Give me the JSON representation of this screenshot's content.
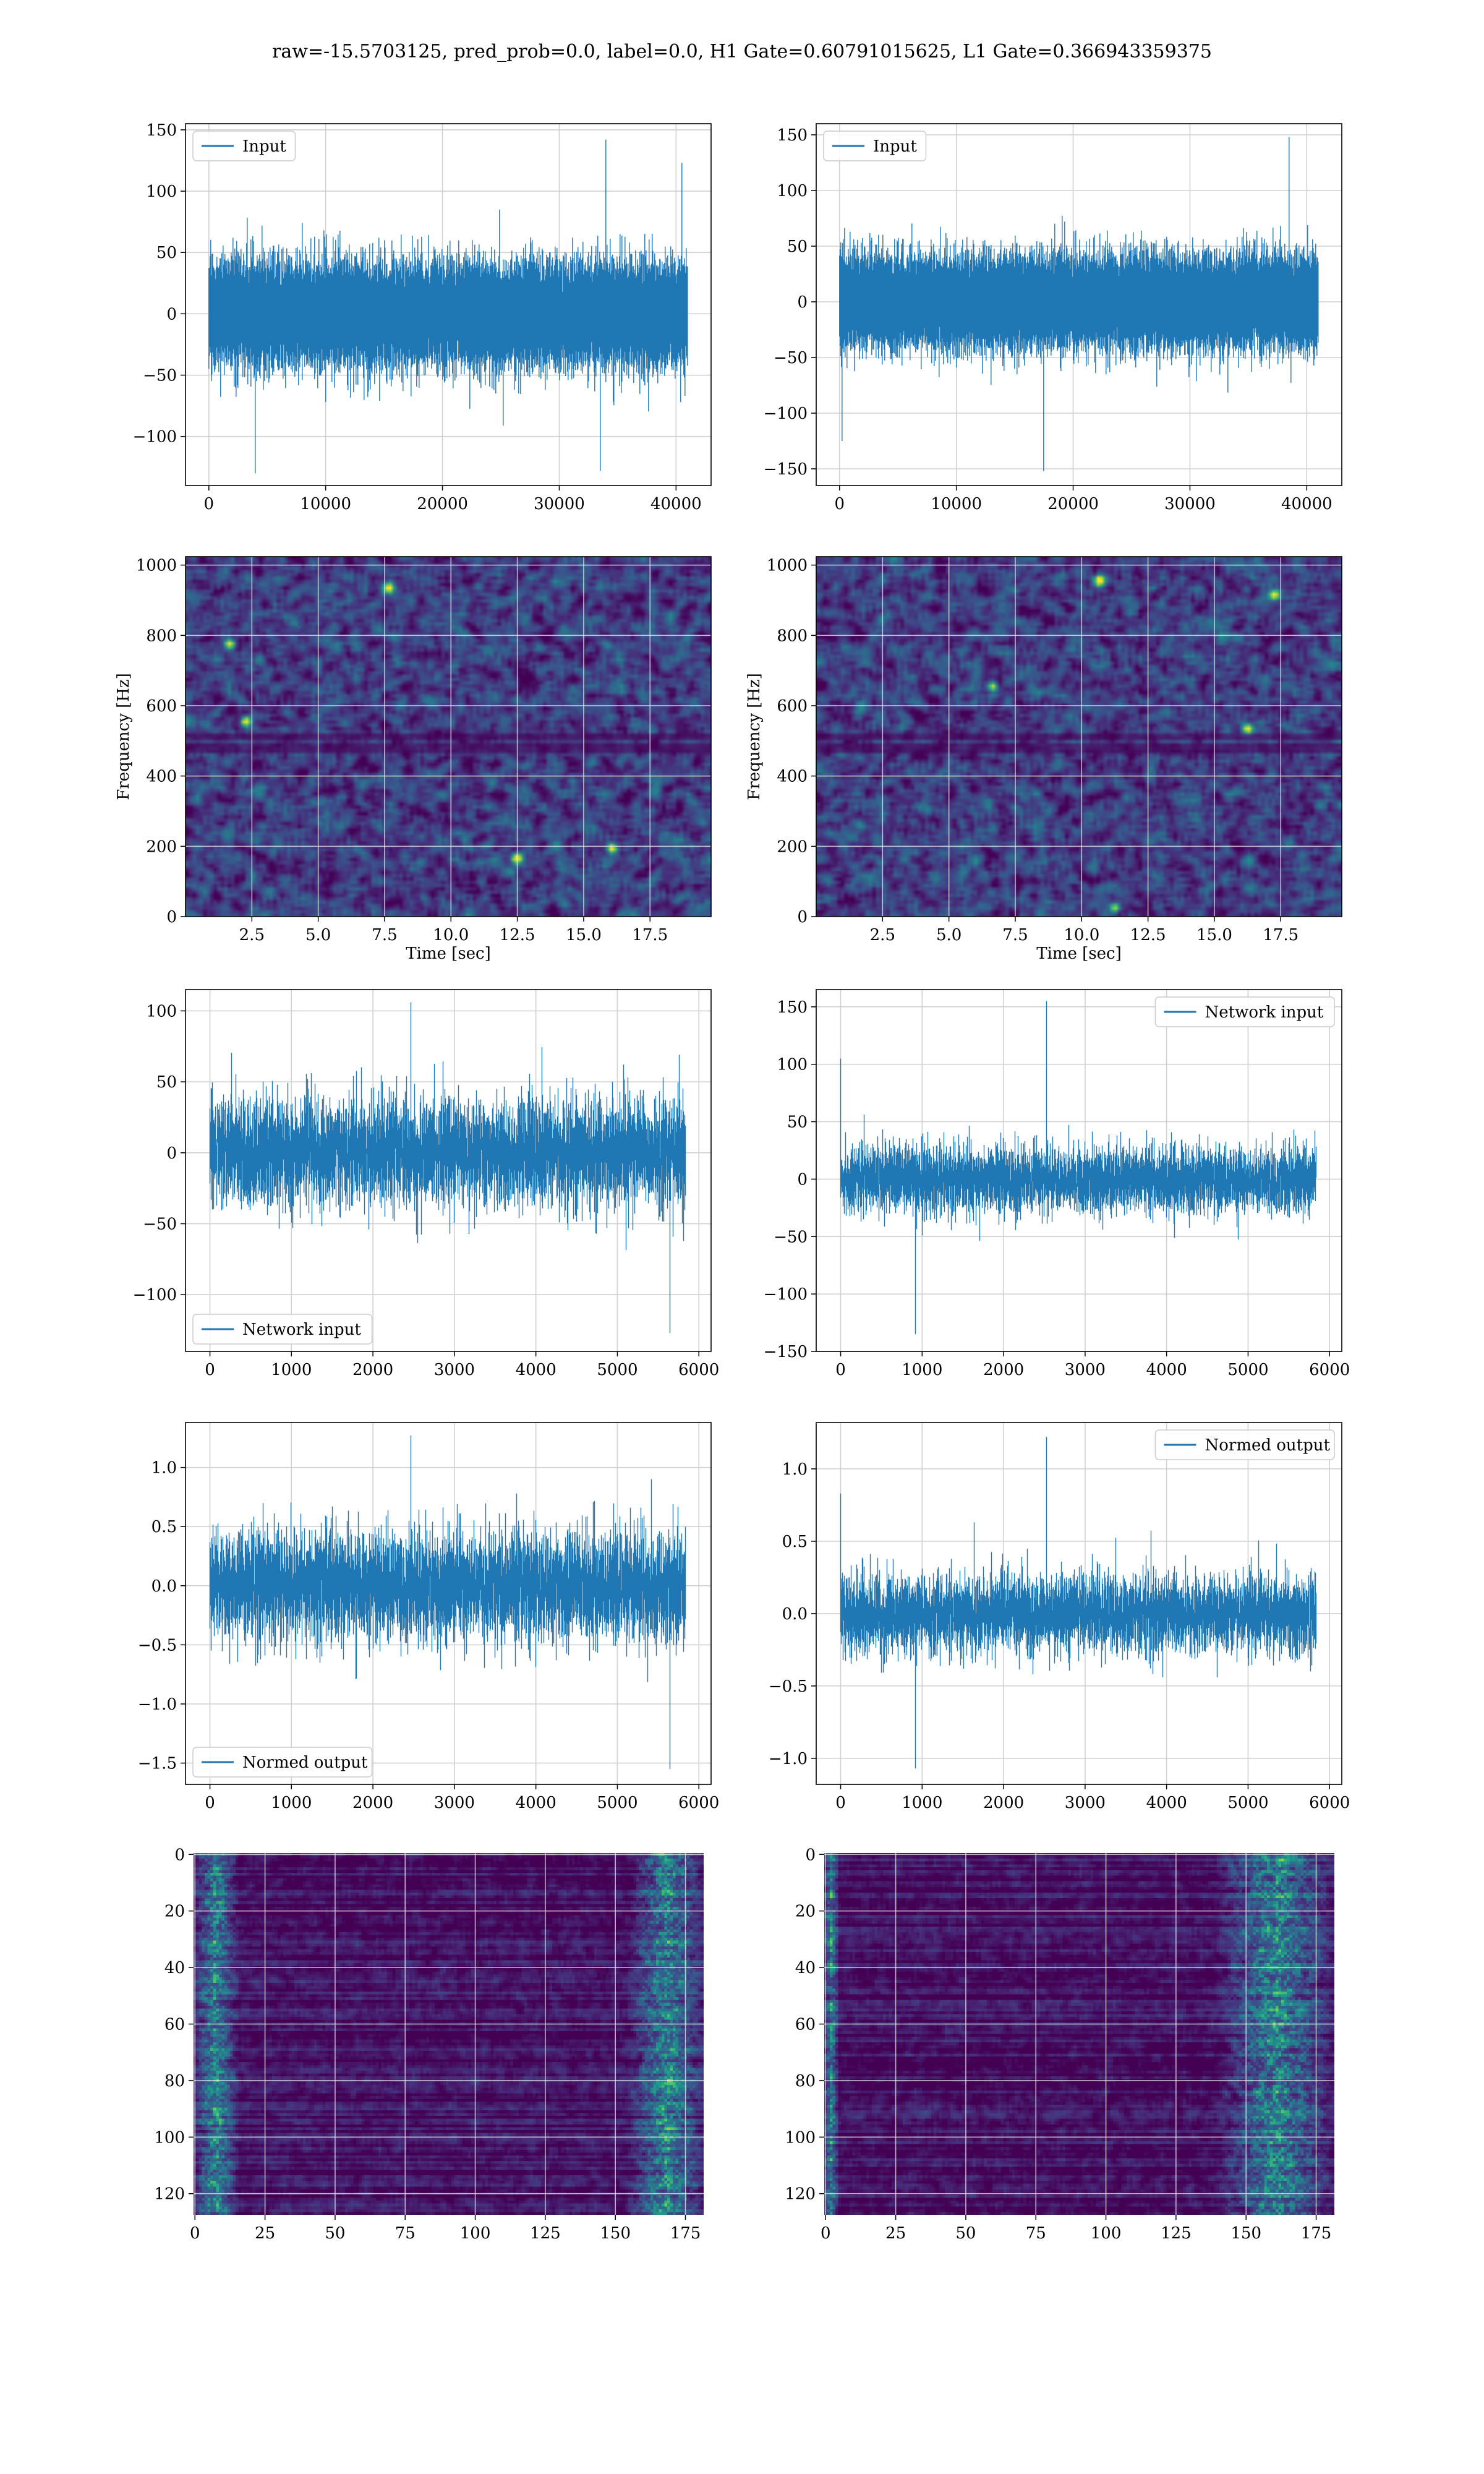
{
  "suptitle": "raw=-15.5703125, pred_prob=0.0, label=0.0, H1 Gate=0.60791015625, L1 Gate=0.366943359375",
  "colors": {
    "line": "#1f77b4",
    "grid": "#d0d0d0",
    "viridis_dark": "#440154",
    "viridis_mid": "#21918c",
    "viridis_bright": "#fde725"
  },
  "chart_data": [
    {
      "id": "input_h1",
      "type": "line",
      "legend": "Input",
      "legend_loc": "upper-left",
      "n_points": 40960,
      "xlim": [
        -2000,
        43000
      ],
      "ylim": [
        -140,
        155
      ],
      "xticks": [
        0,
        10000,
        20000,
        30000,
        40000
      ],
      "yticks": [
        -100,
        -50,
        0,
        50,
        100,
        150
      ],
      "envelope": {
        "sigma": 18,
        "min": -130,
        "max": 142
      },
      "notable_values": [
        {
          "x": 34000,
          "y": 142
        },
        {
          "x": 4000,
          "y": -130
        },
        {
          "x": 40500,
          "y": 123
        },
        {
          "x": 33500,
          "y": -128
        }
      ]
    },
    {
      "id": "input_l1",
      "type": "line",
      "legend": "Input",
      "legend_loc": "upper-left",
      "n_points": 40960,
      "xlim": [
        -2000,
        43000
      ],
      "ylim": [
        -165,
        160
      ],
      "xticks": [
        0,
        10000,
        20000,
        30000,
        40000
      ],
      "yticks": [
        -150,
        -100,
        -50,
        0,
        50,
        100,
        150
      ],
      "envelope": {
        "sigma": 18,
        "min": -152,
        "max": 148
      },
      "notable_values": [
        {
          "x": 38500,
          "y": 148
        },
        {
          "x": 17500,
          "y": -152
        },
        {
          "x": 200,
          "y": -125
        }
      ]
    },
    {
      "id": "spec_h1",
      "type": "heatmap",
      "colormap": "viridis",
      "xlabel": "Time [sec]",
      "ylabel": "Frequency [Hz]",
      "xlim": [
        0,
        19.8
      ],
      "ylim": [
        0,
        1024
      ],
      "xticks": [
        2.5,
        5.0,
        7.5,
        10.0,
        12.5,
        15.0,
        17.5
      ],
      "yticks": [
        0,
        200,
        400,
        600,
        800,
        1000
      ],
      "dark_bands_hz": [
        480,
        512
      ],
      "bright_spots": [
        {
          "t": 1.6,
          "f": 780
        },
        {
          "t": 7.6,
          "f": 940
        },
        {
          "t": 12.4,
          "f": 170
        },
        {
          "t": 2.2,
          "f": 560
        },
        {
          "t": 16.0,
          "f": 200
        }
      ]
    },
    {
      "id": "spec_l1",
      "type": "heatmap",
      "colormap": "viridis",
      "xlabel": "Time [sec]",
      "ylabel": "Frequency [Hz]",
      "xlim": [
        0,
        19.8
      ],
      "ylim": [
        0,
        1024
      ],
      "xticks": [
        2.5,
        5.0,
        7.5,
        10.0,
        12.5,
        15.0,
        17.5
      ],
      "yticks": [
        0,
        200,
        400,
        600,
        800,
        1000
      ],
      "dark_bands_hz": [
        480,
        512
      ],
      "bright_spots": [
        {
          "t": 11.2,
          "f": 30
        },
        {
          "t": 6.6,
          "f": 660
        },
        {
          "t": 17.2,
          "f": 920
        },
        {
          "t": 16.2,
          "f": 540
        },
        {
          "t": 10.6,
          "f": 960
        }
      ]
    },
    {
      "id": "network_input_h1",
      "type": "line",
      "legend": "Network input",
      "legend_loc": "lower-left",
      "n_points": 5836,
      "xlim": [
        -300,
        6150
      ],
      "ylim": [
        -140,
        115
      ],
      "xticks": [
        0,
        1000,
        2000,
        3000,
        4000,
        5000,
        6000
      ],
      "yticks": [
        -100,
        -50,
        0,
        50,
        100
      ],
      "envelope": {
        "sigma": 18,
        "min": -127,
        "max": 106
      },
      "notable_values": [
        {
          "x": 2470,
          "y": 106
        },
        {
          "x": 5650,
          "y": -127
        }
      ]
    },
    {
      "id": "network_input_l1",
      "type": "line",
      "legend": "Network input",
      "legend_loc": "upper-right",
      "n_points": 5836,
      "xlim": [
        -300,
        6150
      ],
      "ylim": [
        -150,
        165
      ],
      "xticks": [
        0,
        1000,
        2000,
        3000,
        4000,
        5000,
        6000
      ],
      "yticks": [
        -150,
        -100,
        -50,
        0,
        50,
        100,
        150
      ],
      "envelope": {
        "sigma": 14,
        "min": -135,
        "max": 155
      },
      "notable_values": [
        {
          "x": 2530,
          "y": 155
        },
        {
          "x": 920,
          "y": -135
        },
        {
          "x": 0,
          "y": 105
        }
      ]
    },
    {
      "id": "normed_output_h1",
      "type": "line",
      "legend": "Normed output",
      "legend_loc": "lower-left",
      "n_points": 5836,
      "xlim": [
        -300,
        6150
      ],
      "ylim": [
        -1.68,
        1.38
      ],
      "xticks": [
        0,
        1000,
        2000,
        3000,
        4000,
        5000,
        6000
      ],
      "yticks": [
        -1.5,
        -1.0,
        -0.5,
        0.0,
        0.5,
        1.0
      ],
      "envelope": {
        "sigma": 0.22,
        "min": -1.55,
        "max": 1.27
      },
      "notable_values": [
        {
          "x": 2470,
          "y": 1.27
        },
        {
          "x": 5650,
          "y": -1.55
        }
      ]
    },
    {
      "id": "normed_output_l1",
      "type": "line",
      "legend": "Normed output",
      "legend_loc": "upper-right",
      "n_points": 5836,
      "xlim": [
        -300,
        6150
      ],
      "ylim": [
        -1.18,
        1.32
      ],
      "xticks": [
        0,
        1000,
        2000,
        3000,
        4000,
        5000,
        6000
      ],
      "yticks": [
        -1.0,
        -0.5,
        0.0,
        0.5,
        1.0
      ],
      "envelope": {
        "sigma": 0.13,
        "min": -1.07,
        "max": 1.22
      },
      "notable_values": [
        {
          "x": 2530,
          "y": 1.22
        },
        {
          "x": 920,
          "y": -1.07
        },
        {
          "x": 0,
          "y": 0.83
        }
      ]
    },
    {
      "id": "feature_map_h1",
      "type": "heatmap",
      "colormap": "viridis",
      "rows": 128,
      "cols": 182,
      "origin": "upper",
      "xticks": [
        0,
        25,
        50,
        75,
        100,
        125,
        150,
        175
      ],
      "yticks": [
        0,
        20,
        40,
        60,
        80,
        100,
        120
      ],
      "bright_columns": [
        [
          0,
          15
        ],
        [
          155,
          182
        ]
      ]
    },
    {
      "id": "feature_map_l1",
      "type": "heatmap",
      "colormap": "viridis",
      "rows": 128,
      "cols": 182,
      "origin": "upper",
      "xticks": [
        0,
        25,
        50,
        75,
        100,
        125,
        150,
        175
      ],
      "yticks": [
        0,
        20,
        40,
        60,
        80,
        100,
        120
      ],
      "bright_columns": [
        [
          0,
          4
        ],
        [
          140,
          182
        ]
      ]
    }
  ]
}
